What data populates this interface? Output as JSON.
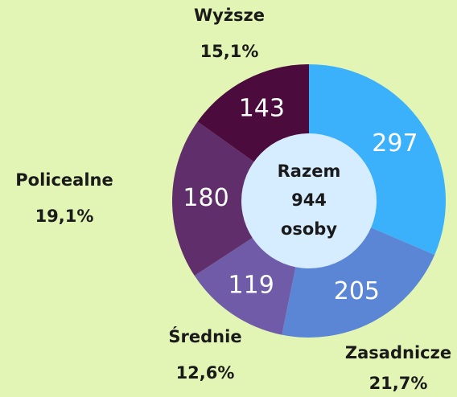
{
  "chart_data": {
    "type": "donut",
    "categories": [
      null,
      "Zasadnicze",
      "Średnie",
      "Policealne",
      "Wyższe"
    ],
    "values": [
      297,
      205,
      119,
      180,
      143
    ],
    "percent_labels": [
      null,
      "21,7%",
      "12,6%",
      "19,1%",
      "15,1%"
    ],
    "colors": [
      "#3cb1fb",
      "#5b86d6",
      "#6f5ba8",
      "#5f2e6b",
      "#4b0b3d"
    ],
    "center_label": [
      "Razem",
      944,
      "osoby"
    ],
    "center_color": "#d6ecff"
  }
}
